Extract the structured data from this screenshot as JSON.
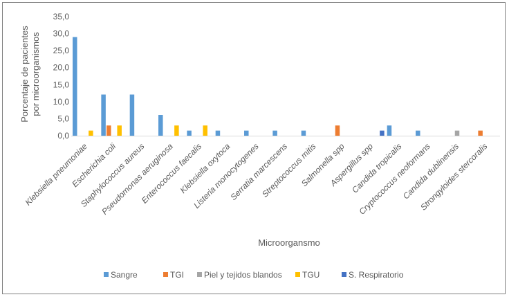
{
  "chart_data": {
    "type": "bar",
    "title": "",
    "xlabel": "Microorgansmo",
    "ylabel_lines": [
      "Porcentaje de pacientes",
      "por microorganismos"
    ],
    "ylim": [
      0,
      35
    ],
    "yticks": [
      "0,0",
      "5,0",
      "10,0",
      "15,0",
      "20,0",
      "25,0",
      "30,0",
      "35,0"
    ],
    "legend_position": "bottom",
    "categories": [
      "Klebsiella pneumoniae",
      "Escherichia coli",
      "Staphylococcus aureus",
      "Pseudomonas aeruginosa",
      "Enterococcus faecalis",
      "Klebsiella oxytoca",
      "Listeria monocytogenes",
      "Serratia marcescens",
      "Streptococcus mitis",
      "Salmonella spp",
      "Aspergillus spp",
      "Candida tropicalis",
      "Cryptococcus neoformans",
      "Candida dublinensis",
      "Strongyloides stercoralis"
    ],
    "series": [
      {
        "name": "Sangre",
        "color": "#5b9bd5",
        "values": [
          29.0,
          12.1,
          12.1,
          6.1,
          1.5,
          1.5,
          1.5,
          1.5,
          1.5,
          0,
          0,
          3.0,
          1.5,
          0,
          0
        ]
      },
      {
        "name": "TGI",
        "color": "#ed7d31",
        "values": [
          0,
          3.0,
          0,
          0,
          0,
          0,
          0,
          0,
          0,
          3.0,
          0,
          0,
          0,
          0,
          1.5
        ]
      },
      {
        "name": "Piel y tejidos blandos",
        "color": "#a5a5a5",
        "values": [
          0,
          0,
          0,
          0,
          0,
          0,
          0,
          0,
          0,
          0,
          0,
          0,
          0,
          1.5,
          0
        ]
      },
      {
        "name": "TGU",
        "color": "#ffc000",
        "values": [
          1.5,
          3.0,
          0,
          3.0,
          3.0,
          0,
          0,
          0,
          0,
          0,
          0,
          0,
          0,
          0,
          0
        ]
      },
      {
        "name": "S. Respiratorio",
        "color": "#4472c4",
        "values": [
          0,
          0,
          0,
          0,
          0,
          0,
          0,
          0,
          0,
          0,
          1.5,
          0,
          0,
          0,
          0
        ]
      }
    ]
  }
}
